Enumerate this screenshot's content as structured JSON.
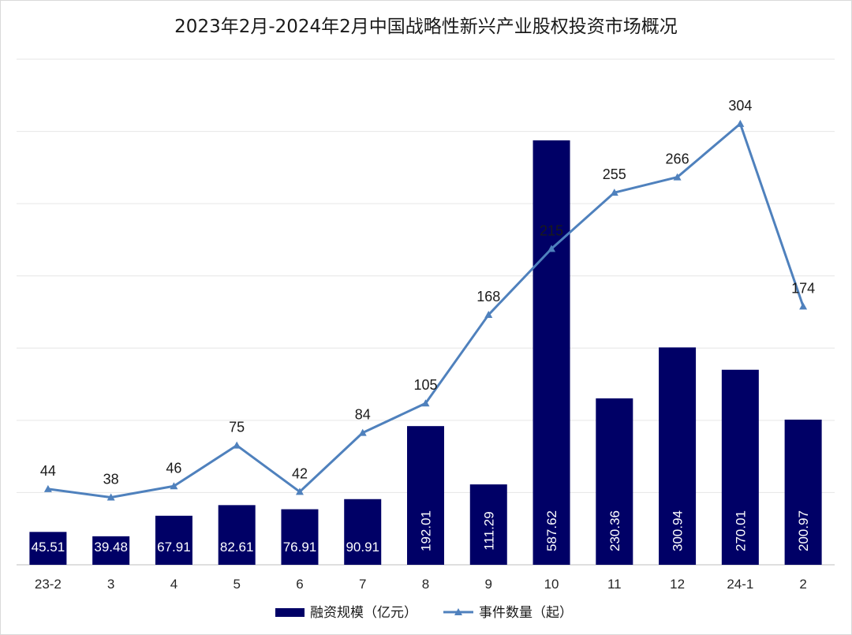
{
  "chart_data": {
    "type": "bar+line",
    "title": "2023年2月-2024年2月中国战略性新兴产业股权投资市场概况",
    "categories": [
      "23-2",
      "3",
      "4",
      "5",
      "6",
      "7",
      "8",
      "9",
      "10",
      "11",
      "12",
      "24-1",
      "2"
    ],
    "series": [
      {
        "name": "融资规模（亿元）",
        "type": "bar",
        "color": "#000066",
        "values": [
          45.51,
          39.48,
          67.91,
          82.61,
          76.91,
          90.91,
          192.01,
          111.29,
          587.62,
          230.36,
          300.94,
          270.01,
          200.97
        ],
        "ylim": [
          0,
          700
        ]
      },
      {
        "name": "事件数量（起）",
        "type": "line",
        "color": "#4f81bd",
        "marker": "triangle",
        "values": [
          44,
          38,
          46,
          75,
          42,
          84,
          105,
          168,
          215,
          255,
          266,
          304,
          174
        ],
        "ylim": [
          -10,
          350
        ]
      }
    ],
    "legend": "bottom-center",
    "grid": true
  }
}
